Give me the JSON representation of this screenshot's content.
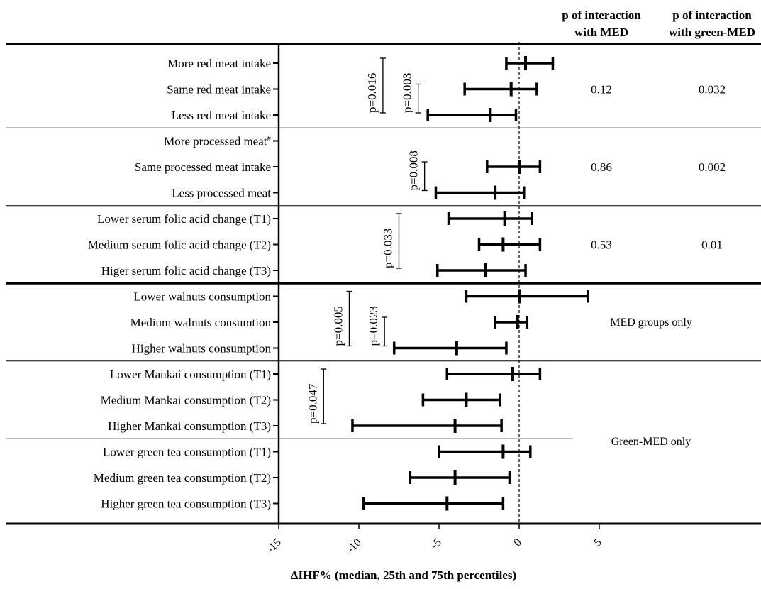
{
  "header": {
    "col_med": [
      "p of interaction",
      "with MED"
    ],
    "col_green": [
      "p of interaction",
      "with green-MED"
    ]
  },
  "chart_data": {
    "type": "forest",
    "xlabel": "ΔIHF% (median, 25th and 75th percentiles)",
    "xlim": [
      -15,
      7.5
    ],
    "xticks": [
      -15,
      -10,
      -5,
      0,
      5
    ],
    "reference_line": 0,
    "rows": [
      {
        "label": "More red meat intake",
        "median": 0.4,
        "p25": -0.8,
        "p75": 2.1
      },
      {
        "label": "Same red meat intake",
        "median": -0.5,
        "p25": -3.4,
        "p75": 1.1
      },
      {
        "label": "Less red meat intake",
        "median": -1.8,
        "p25": -5.7,
        "p75": -0.2
      },
      {
        "label": "More processed meat",
        "label_suffix": "#",
        "median": null,
        "p25": null,
        "p75": null
      },
      {
        "label": "Same processed meat intake",
        "median": 0.0,
        "p25": -2.0,
        "p75": 1.3
      },
      {
        "label": "Less processed meat",
        "median": -1.5,
        "p25": -5.2,
        "p75": 0.3
      },
      {
        "label": "Lower serum folic acid change (T1)",
        "median": -0.9,
        "p25": -4.4,
        "p75": 0.8
      },
      {
        "label": "Medium serum folic acid change (T2)",
        "median": -1.0,
        "p25": -2.5,
        "p75": 1.3
      },
      {
        "label": "Higer serum folic acid change (T3)",
        "median": -2.1,
        "p25": -5.1,
        "p75": 0.4
      },
      {
        "label": "Lower walnuts consumption",
        "median": 0.0,
        "p25": -3.3,
        "p75": 4.3
      },
      {
        "label": "Medium walnuts consumtion",
        "median": -0.1,
        "p25": -1.5,
        "p75": 0.5
      },
      {
        "label": "Higher walnuts consumption",
        "median": -3.9,
        "p25": -7.8,
        "p75": -0.8
      },
      {
        "label": "Lower Mankai consumption (T1)",
        "median": -0.4,
        "p25": -4.5,
        "p75": 1.3
      },
      {
        "label": "Medium Mankai consumption (T2)",
        "median": -3.3,
        "p25": -6.0,
        "p75": -1.2
      },
      {
        "label": "Higher Mankai consumption (T3)",
        "median": -4.0,
        "p25": -10.4,
        "p75": -1.1
      },
      {
        "label": "Lower green tea consumption (T1)",
        "median": -1.0,
        "p25": -5.0,
        "p75": 0.7
      },
      {
        "label": "Medium green tea consumption (T2)",
        "median": -4.0,
        "p25": -6.8,
        "p75": -0.6
      },
      {
        "label": "Higher green tea consumption (T3)",
        "median": -4.5,
        "p25": -9.7,
        "p75": -1.0
      }
    ],
    "group_dividers_after_row": [
      {
        "after": 2,
        "style": "thin",
        "span": "full"
      },
      {
        "after": 5,
        "style": "thin",
        "span": "full"
      },
      {
        "after": 8,
        "style": "thick",
        "span": "full"
      },
      {
        "after": 11,
        "style": "thin",
        "span": "full"
      },
      {
        "after": 14,
        "style": "thin",
        "span": "partial"
      }
    ],
    "pvalue_brackets": [
      {
        "text": "p=0.016",
        "x": -8.5,
        "from_row": 0,
        "to_row": 2
      },
      {
        "text": "p=0.003",
        "x": -6.3,
        "from_row": 1,
        "to_row": 2
      },
      {
        "text": "p=0.008",
        "x": -5.9,
        "from_row": 4,
        "to_row": 5
      },
      {
        "text": "p=0.033",
        "x": -7.5,
        "from_row": 6,
        "to_row": 8
      },
      {
        "text": "p=0.005",
        "x": -10.6,
        "from_row": 9,
        "to_row": 11
      },
      {
        "text": "p=0.023",
        "x": -8.4,
        "from_row": 10,
        "to_row": 11
      },
      {
        "text": "p=0.047",
        "x": -12.2,
        "from_row": 12,
        "to_row": 14
      }
    ],
    "interaction_pvalues": [
      {
        "rows": [
          0,
          2
        ],
        "med": "0.12",
        "green_med": "0.032"
      },
      {
        "rows": [
          3,
          5
        ],
        "med": "0.86",
        "green_med": "0.002"
      },
      {
        "rows": [
          6,
          8
        ],
        "med": "0.53",
        "green_med": "0.01"
      }
    ],
    "section_notes": [
      {
        "text": "MED groups only",
        "at_row": 10
      },
      {
        "text": "Green-MED only",
        "at_row": 14.6
      }
    ]
  }
}
